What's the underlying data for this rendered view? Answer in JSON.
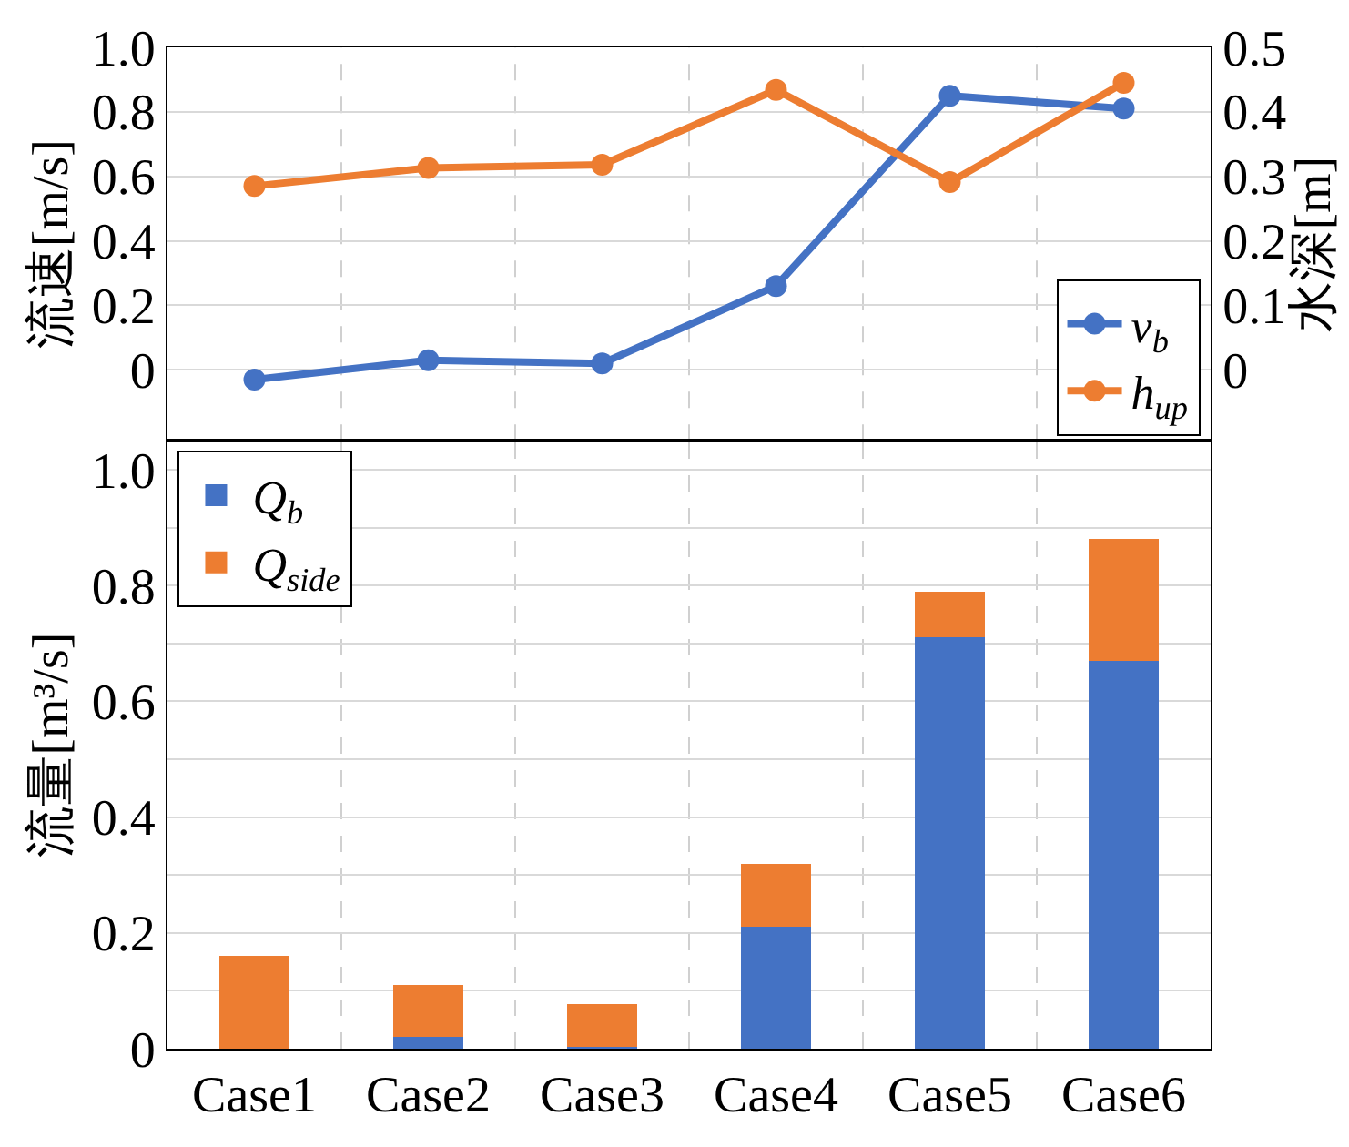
{
  "chart_data": [
    {
      "type": "line",
      "categories": [
        null,
        null,
        null,
        null,
        null,
        null
      ],
      "ylabel": "流速[m/s]",
      "y2label": "水深[m]",
      "series": [
        {
          "name": "v$_{b}$",
          "color": "#4472c4",
          "values": [
            -0.03,
            0.03,
            0.02,
            0.26,
            0.85,
            0.81
          ]
        },
        {
          "name": "h$_{up}$",
          "color": "#ed7d31",
          "axis": "y2",
          "values": [
            0.285,
            0.313,
            0.318,
            0.434,
            0.291,
            0.445
          ]
        }
      ],
      "ylim": [
        -0.22,
        1.0
      ],
      "yticks": [
        0,
        0.2,
        0.4,
        0.6,
        0.8,
        {
          "value": 1.0,
          "label": "1.0"
        }
      ],
      "y2lim": [
        -0.11,
        0.5
      ],
      "y2ticks": [
        0,
        0.1,
        0.2,
        0.3,
        0.4,
        0.5
      ],
      "grid": true,
      "legend": "bottom right",
      "marker": "circle",
      "line_style": "solid",
      "tick_labels": "y"
    },
    {
      "type": "bar",
      "stacked": true,
      "categories": [
        "Case1",
        "Case2",
        "Case3",
        "Case4",
        "Case5",
        "Case6"
      ],
      "ylabel": "流量[m³/s]",
      "series": [
        {
          "name": "Q$_{b}$",
          "color": "#4472c4",
          "values": [
            0,
            0.02,
            0.003,
            0.21,
            0.71,
            0.67
          ]
        },
        {
          "name": "Q$_{side}$",
          "color": "#ed7d31",
          "values": [
            0.16,
            0.09,
            0.074,
            0.11,
            0.08,
            0.21
          ]
        }
      ],
      "ylim": [
        0,
        1.05
      ],
      "yticks": [
        0,
        {
          "value": 0.1,
          "label": null
        },
        0.2,
        {
          "value": 0.3,
          "label": null
        },
        0.4,
        {
          "value": 0.5,
          "label": null
        },
        0.6,
        {
          "value": 0.7,
          "label": null
        },
        0.8,
        {
          "value": 0.9,
          "label": null
        },
        {
          "value": 1.0,
          "label": "1.0"
        }
      ],
      "grid": true,
      "legend": "top left"
    }
  ]
}
